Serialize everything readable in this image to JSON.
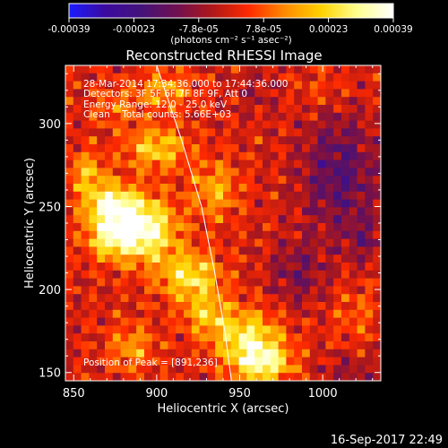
{
  "colorbar": {
    "ticks": [
      "-0.00039",
      "-0.00023",
      "-7.8e-05",
      "7.8e-05",
      "0.00023",
      "0.00039"
    ],
    "units_label": "(photons cm⁻² s⁻¹ asec⁻²)",
    "colormap": [
      "#1b1bff",
      "#3b0aa0",
      "#44127a",
      "#701050",
      "#b01818",
      "#ff2a00",
      "#ff8c00",
      "#ffd200",
      "#ffff90",
      "#ffffff"
    ]
  },
  "annotations": {
    "time_range": "28-Mar-2014 17:34:36.000 to 17:44:36.000",
    "detectors": "Detectors: 3F 5F 6F 7F 8F 9F, Att 0",
    "energy": "Energy Range: 12.0 - 25.0 keV",
    "clean": "Clean    Total counts: 5.66E+03",
    "peak": "Position of Peak = [891,236]"
  },
  "footer": {
    "timestamp": "16-Sep-2017 22:49"
  },
  "chart_data": {
    "type": "heatmap",
    "title": "Reconstructed RHESSI Image",
    "xlabel": "Heliocentric X (arcsec)",
    "ylabel": "Heliocentric Y (arcsec)",
    "xlim": [
      845,
      1035
    ],
    "ylim": [
      145,
      335
    ],
    "xticks": [
      "850",
      "900",
      "950",
      "1000"
    ],
    "yticks": [
      "150",
      "200",
      "250",
      "300"
    ],
    "xtick_values": [
      850,
      900,
      950,
      1000
    ],
    "ytick_values": [
      150,
      200,
      250,
      300
    ],
    "value_range": [
      -0.00039,
      0.00039
    ],
    "grid": false,
    "limb": [
      [
        900,
        335
      ],
      [
        915,
        290
      ],
      [
        927,
        250
      ],
      [
        935,
        210
      ],
      [
        941,
        175
      ],
      [
        945,
        145
      ]
    ],
    "peak": [
      891,
      236
    ],
    "hotspots": [
      {
        "x": 891,
        "y": 236,
        "value": 0.00039,
        "sx": 14,
        "sy": 13
      },
      {
        "x": 872,
        "y": 250,
        "value": 0.00032,
        "sx": 11,
        "sy": 9
      },
      {
        "x": 920,
        "y": 208,
        "value": 0.00026,
        "sx": 13,
        "sy": 10
      },
      {
        "x": 900,
        "y": 285,
        "value": 0.00022,
        "sx": 13,
        "sy": 9
      },
      {
        "x": 858,
        "y": 270,
        "value": 0.00018,
        "sx": 8,
        "sy": 9
      },
      {
        "x": 870,
        "y": 230,
        "value": 0.0002,
        "sx": 9,
        "sy": 8
      },
      {
        "x": 935,
        "y": 260,
        "value": 0.00017,
        "sx": 10,
        "sy": 12
      },
      {
        "x": 955,
        "y": 170,
        "value": 0.00028,
        "sx": 14,
        "sy": 12
      },
      {
        "x": 965,
        "y": 155,
        "value": 0.00026,
        "sx": 12,
        "sy": 8
      },
      {
        "x": 930,
        "y": 185,
        "value": 0.00018,
        "sx": 10,
        "sy": 9
      },
      {
        "x": 885,
        "y": 165,
        "value": 0.00015,
        "sx": 10,
        "sy": 10
      },
      {
        "x": 905,
        "y": 320,
        "value": 0.00016,
        "sx": 12,
        "sy": 8
      },
      {
        "x": 875,
        "y": 310,
        "value": 0.0001,
        "sx": 10,
        "sy": 8
      },
      {
        "x": 1020,
        "y": 185,
        "value": 8e-05,
        "sx": 10,
        "sy": 12
      },
      {
        "x": 1000,
        "y": 320,
        "value": 6e-05,
        "sx": 12,
        "sy": 8
      }
    ],
    "coldspots": [
      {
        "x": 1010,
        "y": 270,
        "value": -0.00018,
        "sx": 16,
        "sy": 25
      },
      {
        "x": 985,
        "y": 210,
        "value": -0.00012,
        "sx": 12,
        "sy": 14
      },
      {
        "x": 1025,
        "y": 230,
        "value": -0.0001,
        "sx": 8,
        "sy": 10
      },
      {
        "x": 1015,
        "y": 150,
        "value": -8e-05,
        "sx": 12,
        "sy": 8
      },
      {
        "x": 960,
        "y": 320,
        "value": -6e-05,
        "sx": 10,
        "sy": 10
      }
    ],
    "noise_amplitude": 0.00012,
    "grid_cells": [
      40,
      40
    ]
  }
}
